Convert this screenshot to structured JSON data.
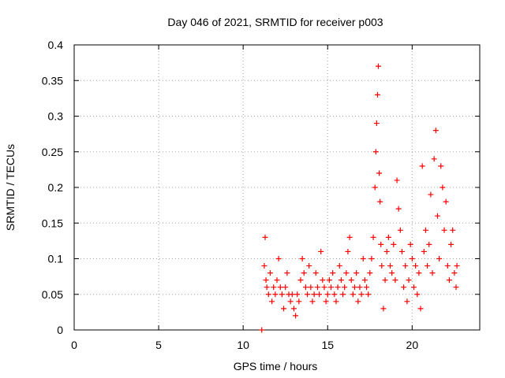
{
  "chart_data": {
    "type": "scatter",
    "title": "Day 046 of 2021, SRMTID for receiver p003",
    "xlabel": "GPS time / hours",
    "ylabel": "SRMTID / TECUs",
    "xlim": [
      0,
      24
    ],
    "ylim": [
      0,
      0.4
    ],
    "xticks": [
      0,
      5,
      10,
      15,
      20
    ],
    "xtick_labels": [
      "0",
      "5",
      "10",
      "15",
      "20"
    ],
    "yticks": [
      0,
      0.05,
      0.1,
      0.15,
      0.2,
      0.25,
      0.3,
      0.35,
      0.4
    ],
    "ytick_labels": [
      "0",
      "0.05",
      "0.1",
      "0.15",
      "0.2",
      "0.25",
      "0.3",
      "0.35",
      "0.4"
    ],
    "grid": true,
    "marker": "+",
    "series": [
      {
        "name": "SRMTID",
        "color": "#ff0000",
        "points": [
          [
            11.1,
            0.0
          ],
          [
            11.25,
            0.09
          ],
          [
            11.3,
            0.13
          ],
          [
            11.35,
            0.07
          ],
          [
            11.4,
            0.06
          ],
          [
            11.5,
            0.05
          ],
          [
            11.6,
            0.08
          ],
          [
            11.7,
            0.04
          ],
          [
            11.8,
            0.06
          ],
          [
            11.9,
            0.05
          ],
          [
            12.0,
            0.07
          ],
          [
            12.1,
            0.1
          ],
          [
            12.2,
            0.06
          ],
          [
            12.3,
            0.05
          ],
          [
            12.4,
            0.03
          ],
          [
            12.5,
            0.06
          ],
          [
            12.6,
            0.08
          ],
          [
            12.7,
            0.05
          ],
          [
            12.8,
            0.04
          ],
          [
            12.9,
            0.05
          ],
          [
            13.0,
            0.03
          ],
          [
            13.1,
            0.02
          ],
          [
            13.2,
            0.05
          ],
          [
            13.3,
            0.04
          ],
          [
            13.4,
            0.07
          ],
          [
            13.5,
            0.1
          ],
          [
            13.6,
            0.08
          ],
          [
            13.7,
            0.06
          ],
          [
            13.8,
            0.05
          ],
          [
            13.9,
            0.09
          ],
          [
            14.0,
            0.06
          ],
          [
            14.1,
            0.04
          ],
          [
            14.2,
            0.05
          ],
          [
            14.3,
            0.08
          ],
          [
            14.4,
            0.06
          ],
          [
            14.5,
            0.05
          ],
          [
            14.6,
            0.11
          ],
          [
            14.7,
            0.07
          ],
          [
            14.8,
            0.06
          ],
          [
            14.9,
            0.04
          ],
          [
            15.0,
            0.05
          ],
          [
            15.1,
            0.07
          ],
          [
            15.2,
            0.06
          ],
          [
            15.3,
            0.08
          ],
          [
            15.4,
            0.05
          ],
          [
            15.5,
            0.04
          ],
          [
            15.6,
            0.06
          ],
          [
            15.7,
            0.09
          ],
          [
            15.8,
            0.07
          ],
          [
            15.9,
            0.05
          ],
          [
            16.0,
            0.06
          ],
          [
            16.1,
            0.08
          ],
          [
            16.2,
            0.11
          ],
          [
            16.3,
            0.13
          ],
          [
            16.4,
            0.07
          ],
          [
            16.5,
            0.05
          ],
          [
            16.6,
            0.06
          ],
          [
            16.7,
            0.08
          ],
          [
            16.8,
            0.04
          ],
          [
            16.9,
            0.06
          ],
          [
            17.0,
            0.05
          ],
          [
            17.1,
            0.1
          ],
          [
            17.2,
            0.07
          ],
          [
            17.3,
            0.06
          ],
          [
            17.4,
            0.05
          ],
          [
            17.5,
            0.08
          ],
          [
            17.6,
            0.1
          ],
          [
            17.7,
            0.13
          ],
          [
            17.8,
            0.2
          ],
          [
            17.85,
            0.25
          ],
          [
            17.9,
            0.29
          ],
          [
            17.95,
            0.33
          ],
          [
            18.0,
            0.37
          ],
          [
            18.05,
            0.22
          ],
          [
            18.1,
            0.18
          ],
          [
            18.15,
            0.12
          ],
          [
            18.2,
            0.09
          ],
          [
            18.3,
            0.03
          ],
          [
            18.4,
            0.07
          ],
          [
            18.5,
            0.11
          ],
          [
            18.6,
            0.13
          ],
          [
            18.7,
            0.09
          ],
          [
            18.8,
            0.08
          ],
          [
            18.9,
            0.12
          ],
          [
            19.0,
            0.07
          ],
          [
            19.1,
            0.21
          ],
          [
            19.2,
            0.17
          ],
          [
            19.3,
            0.14
          ],
          [
            19.4,
            0.11
          ],
          [
            19.5,
            0.06
          ],
          [
            19.6,
            0.09
          ],
          [
            19.7,
            0.04
          ],
          [
            19.8,
            0.07
          ],
          [
            19.9,
            0.12
          ],
          [
            20.0,
            0.1
          ],
          [
            20.1,
            0.06
          ],
          [
            20.2,
            0.09
          ],
          [
            20.3,
            0.05
          ],
          [
            20.4,
            0.08
          ],
          [
            20.5,
            0.03
          ],
          [
            20.6,
            0.23
          ],
          [
            20.7,
            0.11
          ],
          [
            20.8,
            0.14
          ],
          [
            20.9,
            0.09
          ],
          [
            21.0,
            0.12
          ],
          [
            21.1,
            0.19
          ],
          [
            21.2,
            0.08
          ],
          [
            21.3,
            0.24
          ],
          [
            21.4,
            0.28
          ],
          [
            21.5,
            0.16
          ],
          [
            21.6,
            0.1
          ],
          [
            21.7,
            0.23
          ],
          [
            21.8,
            0.2
          ],
          [
            21.9,
            0.14
          ],
          [
            22.0,
            0.18
          ],
          [
            22.1,
            0.09
          ],
          [
            22.2,
            0.07
          ],
          [
            22.3,
            0.12
          ],
          [
            22.4,
            0.14
          ],
          [
            22.5,
            0.08
          ],
          [
            22.6,
            0.06
          ],
          [
            22.65,
            0.09
          ]
        ]
      }
    ]
  }
}
